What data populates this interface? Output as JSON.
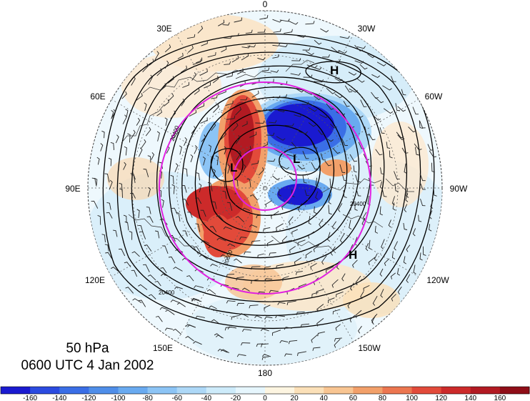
{
  "map": {
    "level": "50 hPa",
    "valid_time": "0600 UTC 4 Jan 2002",
    "longitude_labels": {
      "top": "0",
      "bottom": "180",
      "left_90": "90E",
      "right_90": "90W",
      "e30": "30E",
      "w30": "30W",
      "e60": "60E",
      "w60": "60W",
      "e120": "120E",
      "w120": "120W",
      "e150": "150E",
      "w150": "150W"
    },
    "pressure_centers": [
      {
        "id": "high-north",
        "label": "H"
      },
      {
        "id": "high-southeast",
        "label": "H"
      },
      {
        "id": "low-west",
        "label": "L"
      },
      {
        "id": "low-center",
        "label": "L"
      }
    ],
    "contour_labels": [
      "20400",
      "20400",
      "20400",
      "20600"
    ],
    "colors": {
      "circle": "#e020e0",
      "contour": "#000000",
      "coast": "#333333"
    }
  },
  "colorbar": {
    "ticks": [
      "-160",
      "-140",
      "-120",
      "-100",
      "-80",
      "-60",
      "-40",
      "-20",
      "0",
      "20",
      "40",
      "60",
      "80",
      "100",
      "120",
      "140",
      "160"
    ],
    "colors": [
      "#1a1ad0",
      "#2b4be0",
      "#3a6ee6",
      "#4f8ee9",
      "#69aaf0",
      "#8cc4f5",
      "#add8f7",
      "#cdebfa",
      "#e6f6fd",
      "#fdf5e1",
      "#fbe0b8",
      "#f8c592",
      "#f2a06a",
      "#ec7650",
      "#e24a3a",
      "#cc2a2a",
      "#b21a22",
      "#8f0e18"
    ]
  }
}
